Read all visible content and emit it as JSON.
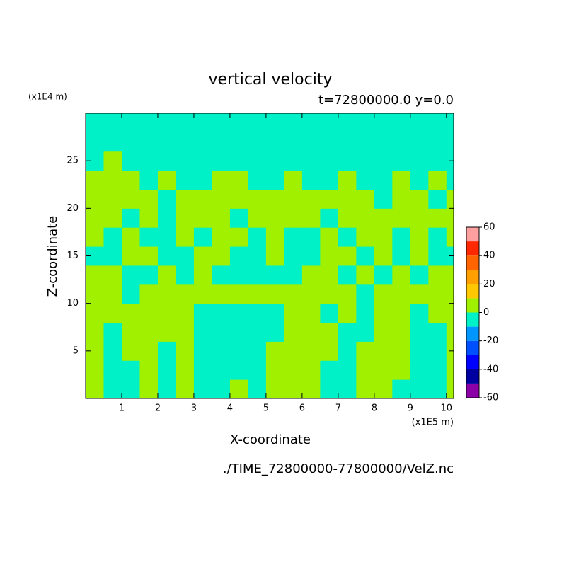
{
  "chart_data": {
    "type": "contour",
    "title": "vertical velocity",
    "subtitle": "t=72800000.0 y=0.0",
    "x_label": "X-coordinate",
    "y_label": "Z-coordinate",
    "x_unit": "(x1E5 m)",
    "y_unit": "(x1E4 m)",
    "source": "./TIME_72800000-77800000/VelZ.nc",
    "xlim": [
      0,
      10.2
    ],
    "ylim": [
      0,
      30
    ],
    "xticks": [
      1,
      2,
      3,
      4,
      5,
      6,
      7,
      8,
      9,
      10
    ],
    "yticks": [
      5,
      10,
      15,
      20,
      25
    ],
    "xbins": [
      0,
      0.5,
      1,
      1.5,
      2,
      2.5,
      3,
      3.5,
      4,
      4.5,
      5,
      5.5,
      6,
      6.5,
      7,
      7.5,
      8,
      8.5,
      9,
      9.5,
      10,
      10.2
    ],
    "ybins": [
      0,
      2,
      4,
      6,
      8,
      10,
      12,
      14,
      16,
      18,
      20,
      22,
      24,
      26,
      28,
      30
    ],
    "z": [
      [
        5,
        -5,
        -5,
        5,
        -5,
        5,
        -5,
        -5,
        5,
        -5,
        5,
        5,
        5,
        -5,
        -5,
        5,
        5,
        -5,
        -5,
        -5,
        5
      ],
      [
        5,
        -5,
        -5,
        5,
        -5,
        5,
        -5,
        -5,
        -5,
        -5,
        5,
        5,
        5,
        -5,
        -5,
        5,
        5,
        5,
        -5,
        -5,
        5
      ],
      [
        5,
        -5,
        5,
        5,
        -5,
        5,
        -5,
        -5,
        -5,
        -5,
        5,
        5,
        5,
        5,
        -5,
        5,
        5,
        5,
        -5,
        -5,
        5
      ],
      [
        5,
        -5,
        5,
        5,
        5,
        5,
        -5,
        -5,
        -5,
        -5,
        -5,
        5,
        5,
        5,
        -5,
        -5,
        5,
        5,
        -5,
        -5,
        5
      ],
      [
        5,
        5,
        5,
        5,
        5,
        5,
        -5,
        -5,
        -5,
        -5,
        -5,
        5,
        5,
        -5,
        5,
        -5,
        5,
        5,
        -5,
        5,
        5
      ],
      [
        5,
        5,
        -5,
        5,
        5,
        5,
        5,
        5,
        5,
        5,
        5,
        5,
        5,
        5,
        5,
        -5,
        5,
        5,
        5,
        5,
        5
      ],
      [
        5,
        5,
        -5,
        -5,
        5,
        -5,
        5,
        -5,
        -5,
        -5,
        -5,
        -5,
        5,
        5,
        -5,
        5,
        -5,
        5,
        -5,
        5,
        5
      ],
      [
        -5,
        -5,
        5,
        5,
        -5,
        -5,
        5,
        5,
        -5,
        -5,
        5,
        -5,
        -5,
        5,
        5,
        -5,
        5,
        -5,
        5,
        -5,
        -5
      ],
      [
        5,
        -5,
        5,
        -5,
        -5,
        5,
        -5,
        5,
        5,
        -5,
        5,
        -5,
        -5,
        5,
        -5,
        5,
        5,
        -5,
        5,
        -5,
        5
      ],
      [
        5,
        5,
        -5,
        5,
        -5,
        5,
        5,
        5,
        -5,
        5,
        5,
        5,
        5,
        -5,
        5,
        5,
        5,
        5,
        5,
        5,
        5
      ],
      [
        5,
        5,
        5,
        5,
        -5,
        5,
        5,
        5,
        5,
        5,
        5,
        5,
        5,
        5,
        5,
        5,
        -5,
        5,
        5,
        -5,
        5
      ],
      [
        5,
        5,
        5,
        -5,
        5,
        -5,
        -5,
        5,
        5,
        -5,
        -5,
        5,
        -5,
        -5,
        5,
        -5,
        -5,
        5,
        -5,
        5,
        -5
      ],
      [
        -5,
        5,
        -5,
        -5,
        -5,
        -5,
        -5,
        -5,
        -5,
        -5,
        -5,
        -5,
        -5,
        -5,
        -5,
        -5,
        -5,
        -5,
        -5,
        -5,
        -5
      ],
      [
        -5,
        -5,
        -5,
        -5,
        -5,
        -5,
        -5,
        -5,
        -5,
        -5,
        -5,
        -5,
        -5,
        -5,
        -5,
        -5,
        -5,
        -5,
        -5,
        -5,
        -5
      ],
      [
        -5,
        -5,
        -5,
        -5,
        -5,
        -5,
        -5,
        -5,
        -5,
        -5,
        -5,
        -5,
        -5,
        -5,
        -5,
        -5,
        -5,
        -5,
        -5,
        -5,
        -5
      ]
    ],
    "colorbar": {
      "levels": [
        -60,
        -50,
        -40,
        -30,
        -20,
        -10,
        0,
        10,
        20,
        30,
        40,
        50,
        60
      ],
      "colors": [
        "#8c00a8",
        "#0000a0",
        "#0000ff",
        "#0050ff",
        "#0096ff",
        "#00f0c8",
        "#a0f000",
        "#ffc800",
        "#ffa000",
        "#ff6400",
        "#ff2800",
        "#ffa0a0"
      ],
      "ticks": [
        -60,
        -40,
        -20,
        0,
        20,
        40,
        60
      ]
    }
  }
}
